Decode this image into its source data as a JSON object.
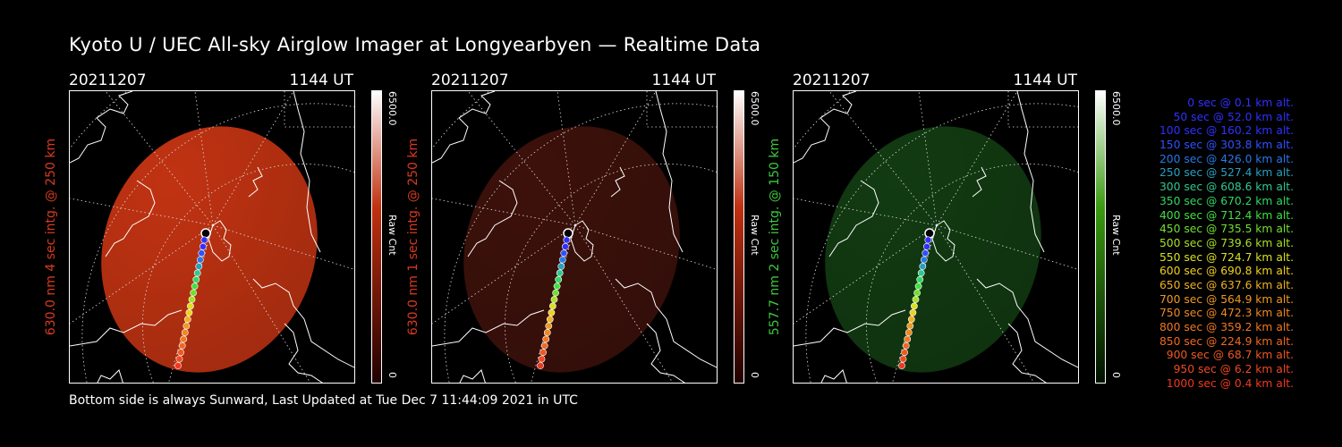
{
  "title": "Kyoto U / UEC All-sky Airglow Imager at Longyearbyen — Realtime Data",
  "footer": "Bottom side is always Sunward, Last Updated at Tue Dec  7 11:44:09 2021 in UTC",
  "panels": [
    {
      "date": "20211207",
      "time": "1144 UT",
      "ylabel": "630.0 nm 4 sec intg. @ 250 km",
      "label_color": "#d83a20",
      "cbar_max": "6500.0",
      "cbar_unit": "Raw Cnt",
      "cbar_min": "0",
      "cbar_color": "#c03010",
      "image_color": "#c13312",
      "brightness": 1.0
    },
    {
      "date": "20211207",
      "time": "1144 UT",
      "ylabel": "630.0 nm 1 sec intg. @ 250 km",
      "label_color": "#d83a20",
      "cbar_max": "6500.0",
      "cbar_unit": "Raw Cnt",
      "cbar_min": "0",
      "cbar_color": "#c03010",
      "image_color": "#3d110b",
      "brightness": 0.3
    },
    {
      "date": "20211207",
      "time": "1144 UT",
      "ylabel": "557.7 nm 2 sec intg. @ 150 km",
      "label_color": "#3ec83e",
      "cbar_max": "6500.0",
      "cbar_unit": "Raw Cnt",
      "cbar_min": "0",
      "cbar_color": "#3a9a10",
      "image_color": "#123b12",
      "brightness": 0.3
    }
  ],
  "legend": [
    {
      "text": "0 sec @   0.1 km alt.",
      "color": "#3030ff"
    },
    {
      "text": "50 sec @  52.0 km alt.",
      "color": "#3030ff"
    },
    {
      "text": "100 sec @ 160.2 km alt.",
      "color": "#3030ff"
    },
    {
      "text": "150 sec @ 303.8 km alt.",
      "color": "#3050ff"
    },
    {
      "text": "200 sec @ 426.0 km alt.",
      "color": "#2878e8"
    },
    {
      "text": "250 sec @ 527.4 km alt.",
      "color": "#28a0c0"
    },
    {
      "text": "300 sec @ 608.6 km alt.",
      "color": "#30c890"
    },
    {
      "text": "350 sec @ 670.2 km alt.",
      "color": "#30d860"
    },
    {
      "text": "400 sec @ 712.4 km alt.",
      "color": "#40e040"
    },
    {
      "text": "450 sec @ 735.5 km alt.",
      "color": "#70e030"
    },
    {
      "text": "500 sec @ 739.6 km alt.",
      "color": "#a8e028"
    },
    {
      "text": "550 sec @ 724.7 km alt.",
      "color": "#d8e020"
    },
    {
      "text": "600 sec @ 690.8 km alt.",
      "color": "#f0d020"
    },
    {
      "text": "650 sec @ 637.6 km alt.",
      "color": "#f0b020"
    },
    {
      "text": "700 sec @ 564.9 km alt.",
      "color": "#f09820"
    },
    {
      "text": "750 sec @ 472.3 km alt.",
      "color": "#f08820"
    },
    {
      "text": "800 sec @ 359.2 km alt.",
      "color": "#f07820"
    },
    {
      "text": "850 sec @ 224.9 km alt.",
      "color": "#f06820"
    },
    {
      "text": "900 sec @  68.7 km alt.",
      "color": "#f05820"
    },
    {
      "text": "950 sec @   6.2 km alt.",
      "color": "#f04820"
    },
    {
      "text": "1000 sec @   0.4 km alt.",
      "color": "#f03820"
    }
  ]
}
